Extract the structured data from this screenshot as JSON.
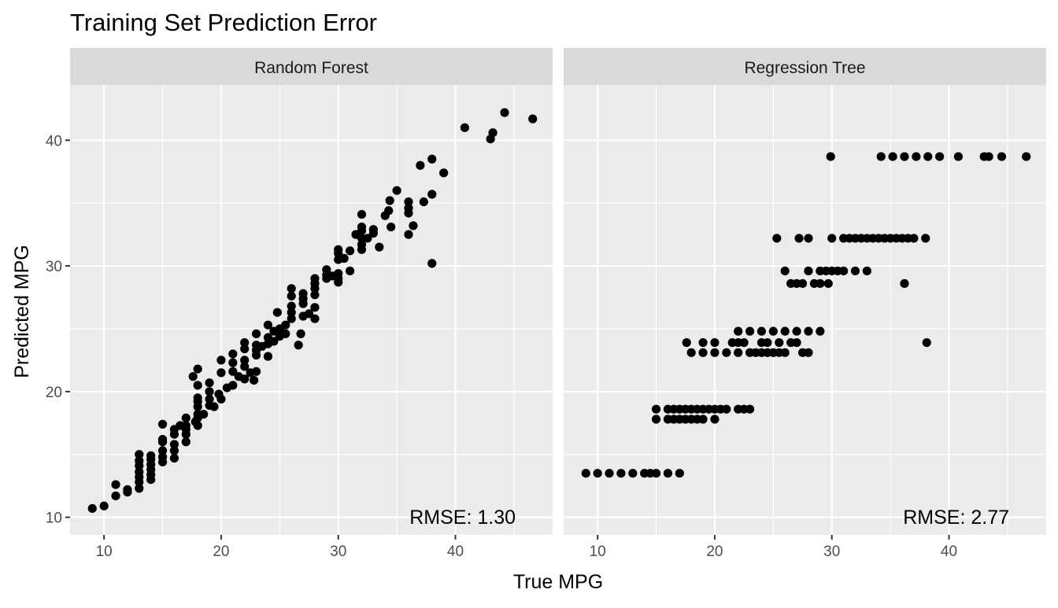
{
  "chart_data": {
    "type": "scatter",
    "title": "Training Set Prediction Error",
    "xlabel": "True MPG",
    "ylabel": "Predicted MPG",
    "xlim": [
      7.1,
      48.3
    ],
    "ylim": [
      8.6,
      44.4
    ],
    "x_ticks": [
      10,
      20,
      30,
      40
    ],
    "y_ticks": [
      10,
      20,
      30,
      40
    ],
    "grid": true,
    "panels": [
      {
        "name": "Random Forest",
        "annotation": "RMSE: 1.30",
        "points": [
          [
            9,
            10.7
          ],
          [
            10,
            10.9
          ],
          [
            11,
            11.7
          ],
          [
            11,
            12.6
          ],
          [
            12,
            12.0
          ],
          [
            12,
            12.2
          ],
          [
            13,
            12.3
          ],
          [
            13,
            12.8
          ],
          [
            13,
            13.2
          ],
          [
            13,
            13.6
          ],
          [
            13,
            14.1
          ],
          [
            13,
            14.5
          ],
          [
            13,
            15.0
          ],
          [
            14,
            13.0
          ],
          [
            14,
            13.4
          ],
          [
            14,
            13.8
          ],
          [
            14,
            14.2
          ],
          [
            14,
            14.6
          ],
          [
            14,
            14.9
          ],
          [
            15,
            14.4
          ],
          [
            15,
            14.8
          ],
          [
            15,
            15.3
          ],
          [
            15,
            16.0
          ],
          [
            15,
            16.2
          ],
          [
            15,
            17.4
          ],
          [
            16,
            14.7
          ],
          [
            16,
            15.3
          ],
          [
            16,
            15.8
          ],
          [
            16,
            16.6
          ],
          [
            16,
            17.0
          ],
          [
            16.5,
            17.3
          ],
          [
            17,
            16.0
          ],
          [
            17,
            16.6
          ],
          [
            17,
            17.0
          ],
          [
            17,
            17.3
          ],
          [
            17,
            17.9
          ],
          [
            17.6,
            21.2
          ],
          [
            17.8,
            17.6
          ],
          [
            18,
            17.3
          ],
          [
            18,
            17.9
          ],
          [
            18,
            18.2
          ],
          [
            18,
            18.8
          ],
          [
            18,
            19.2
          ],
          [
            18,
            19.5
          ],
          [
            18,
            20.5
          ],
          [
            18,
            21.8
          ],
          [
            18.5,
            18.2
          ],
          [
            19,
            18.9
          ],
          [
            19,
            19.4
          ],
          [
            19,
            20.0
          ],
          [
            19,
            20.7
          ],
          [
            19.4,
            18.8
          ],
          [
            19.8,
            19.8
          ],
          [
            20,
            19.4
          ],
          [
            20,
            21.5
          ],
          [
            20,
            22.5
          ],
          [
            20.5,
            20.3
          ],
          [
            21,
            20.5
          ],
          [
            21,
            21.6
          ],
          [
            21,
            22.3
          ],
          [
            21,
            23.0
          ],
          [
            21.5,
            21.2
          ],
          [
            22,
            21.0
          ],
          [
            22,
            22.0
          ],
          [
            22,
            22.5
          ],
          [
            22,
            23.4
          ],
          [
            22,
            23.9
          ],
          [
            22.5,
            21.5
          ],
          [
            22.8,
            20.9
          ],
          [
            23,
            21.6
          ],
          [
            23,
            22.9
          ],
          [
            23,
            23.3
          ],
          [
            23,
            23.7
          ],
          [
            23,
            24.6
          ],
          [
            23.5,
            23.6
          ],
          [
            24,
            22.8
          ],
          [
            24,
            23.8
          ],
          [
            24,
            24.3
          ],
          [
            24,
            25.3
          ],
          [
            24.5,
            24.0
          ],
          [
            24.5,
            24.8
          ],
          [
            24.8,
            26.3
          ],
          [
            25,
            24.4
          ],
          [
            25,
            24.7
          ],
          [
            25,
            25.0
          ],
          [
            25.5,
            24.6
          ],
          [
            25.5,
            25.3
          ],
          [
            26,
            25.8
          ],
          [
            26,
            26.3
          ],
          [
            26,
            26.8
          ],
          [
            26,
            27.6
          ],
          [
            26,
            28.2
          ],
          [
            26.6,
            23.7
          ],
          [
            26.8,
            24.6
          ],
          [
            27,
            26.0
          ],
          [
            27,
            27.0
          ],
          [
            27,
            27.4
          ],
          [
            27,
            27.8
          ],
          [
            27.5,
            26.2
          ],
          [
            28,
            25.8
          ],
          [
            28,
            26.7
          ],
          [
            28,
            27.7
          ],
          [
            28,
            28.2
          ],
          [
            28,
            28.6
          ],
          [
            28,
            29.0
          ],
          [
            29,
            29.0
          ],
          [
            29,
            29.3
          ],
          [
            29,
            29.7
          ],
          [
            29.5,
            29.2
          ],
          [
            30,
            28.7
          ],
          [
            30,
            29.0
          ],
          [
            30,
            29.4
          ],
          [
            30,
            30.5
          ],
          [
            30,
            31.0
          ],
          [
            30,
            31.3
          ],
          [
            30.5,
            30.6
          ],
          [
            31,
            29.6
          ],
          [
            31,
            31.2
          ],
          [
            31.5,
            32.5
          ],
          [
            32,
            31.3
          ],
          [
            32,
            31.7
          ],
          [
            32,
            32.2
          ],
          [
            32,
            32.8
          ],
          [
            32,
            33.1
          ],
          [
            32,
            34.1
          ],
          [
            32.5,
            32.2
          ],
          [
            33,
            32.6
          ],
          [
            33,
            32.9
          ],
          [
            33.5,
            31.5
          ],
          [
            34,
            34.0
          ],
          [
            34.3,
            34.4
          ],
          [
            34.4,
            35.2
          ],
          [
            34.5,
            33.1
          ],
          [
            35,
            36.0
          ],
          [
            36,
            32.5
          ],
          [
            36,
            34.2
          ],
          [
            36,
            34.6
          ],
          [
            36,
            35.1
          ],
          [
            36.4,
            33.2
          ],
          [
            37,
            38.0
          ],
          [
            37.3,
            35.1
          ],
          [
            38,
            30.2
          ],
          [
            38,
            35.7
          ],
          [
            38,
            38.5
          ],
          [
            39,
            37.4
          ],
          [
            40.8,
            41.0
          ],
          [
            43,
            40.1
          ],
          [
            43.2,
            40.6
          ],
          [
            44.2,
            42.2
          ],
          [
            46.6,
            41.7
          ]
        ]
      },
      {
        "name": "Regression Tree",
        "annotation": "RMSE: 2.77",
        "points": [
          [
            9,
            13.5
          ],
          [
            10,
            13.5
          ],
          [
            11,
            13.5
          ],
          [
            12,
            13.5
          ],
          [
            13,
            13.5
          ],
          [
            14,
            13.5
          ],
          [
            14.5,
            13.5
          ],
          [
            15,
            13.5
          ],
          [
            16,
            13.5
          ],
          [
            17,
            13.5
          ],
          [
            15,
            17.8
          ],
          [
            15,
            18.6
          ],
          [
            16,
            17.8
          ],
          [
            16,
            18.6
          ],
          [
            16.5,
            17.8
          ],
          [
            16.5,
            18.6
          ],
          [
            17,
            17.8
          ],
          [
            17,
            18.6
          ],
          [
            17.5,
            17.8
          ],
          [
            17.5,
            18.6
          ],
          [
            18,
            17.8
          ],
          [
            18,
            18.6
          ],
          [
            18.5,
            17.8
          ],
          [
            18.5,
            18.6
          ],
          [
            19,
            18.6
          ],
          [
            19,
            17.8
          ],
          [
            19.5,
            18.6
          ],
          [
            20,
            17.8
          ],
          [
            20,
            18.6
          ],
          [
            20.5,
            18.6
          ],
          [
            21,
            18.6
          ],
          [
            22,
            18.6
          ],
          [
            22.5,
            18.6
          ],
          [
            23,
            18.6
          ],
          [
            17.6,
            23.9
          ],
          [
            18,
            23.1
          ],
          [
            19,
            23.1
          ],
          [
            19,
            23.9
          ],
          [
            20,
            23.1
          ],
          [
            20,
            23.9
          ],
          [
            21,
            23.1
          ],
          [
            21.5,
            23.9
          ],
          [
            22,
            23.1
          ],
          [
            22,
            23.9
          ],
          [
            22,
            24.8
          ],
          [
            22.5,
            23.9
          ],
          [
            23,
            23.1
          ],
          [
            23,
            24.8
          ],
          [
            23.5,
            23.1
          ],
          [
            24,
            23.1
          ],
          [
            24,
            23.9
          ],
          [
            24,
            24.8
          ],
          [
            24.5,
            23.1
          ],
          [
            24.5,
            23.9
          ],
          [
            25,
            23.1
          ],
          [
            25,
            24.8
          ],
          [
            25.5,
            23.1
          ],
          [
            25.5,
            23.9
          ],
          [
            26,
            23.1
          ],
          [
            26,
            24.8
          ],
          [
            26.5,
            23.9
          ],
          [
            27,
            24.8
          ],
          [
            27.5,
            23.1
          ],
          [
            28,
            23.1
          ],
          [
            28,
            24.8
          ],
          [
            29,
            24.8
          ],
          [
            27,
            23.9
          ],
          [
            25.3,
            32.2
          ],
          [
            26,
            29.6
          ],
          [
            26.5,
            28.6
          ],
          [
            27,
            28.6
          ],
          [
            27.5,
            28.6
          ],
          [
            27.2,
            32.2
          ],
          [
            28,
            29.6
          ],
          [
            28,
            32.2
          ],
          [
            28.5,
            28.6
          ],
          [
            29,
            28.6
          ],
          [
            29,
            29.6
          ],
          [
            29.5,
            29.6
          ],
          [
            29.7,
            28.6
          ],
          [
            30,
            29.6
          ],
          [
            30,
            32.2
          ],
          [
            29.9,
            38.7
          ],
          [
            30.5,
            29.6
          ],
          [
            31,
            29.6
          ],
          [
            31,
            32.2
          ],
          [
            31.5,
            32.2
          ],
          [
            32,
            29.6
          ],
          [
            32,
            32.2
          ],
          [
            32.5,
            32.2
          ],
          [
            33,
            32.2
          ],
          [
            33,
            29.6
          ],
          [
            33.5,
            32.2
          ],
          [
            34,
            32.2
          ],
          [
            34.5,
            32.2
          ],
          [
            35,
            32.2
          ],
          [
            35.5,
            32.2
          ],
          [
            36,
            32.2
          ],
          [
            36.5,
            32.2
          ],
          [
            37,
            32.2
          ],
          [
            38,
            32.2
          ],
          [
            36.2,
            28.6
          ],
          [
            38.1,
            23.9
          ],
          [
            34.2,
            38.7
          ],
          [
            35.2,
            38.7
          ],
          [
            36.2,
            38.7
          ],
          [
            37.2,
            38.7
          ],
          [
            38.2,
            38.7
          ],
          [
            39.2,
            38.7
          ],
          [
            40.8,
            38.7
          ],
          [
            43,
            38.7
          ],
          [
            43.4,
            38.7
          ],
          [
            44.5,
            38.7
          ],
          [
            46.6,
            38.7
          ]
        ]
      }
    ]
  }
}
